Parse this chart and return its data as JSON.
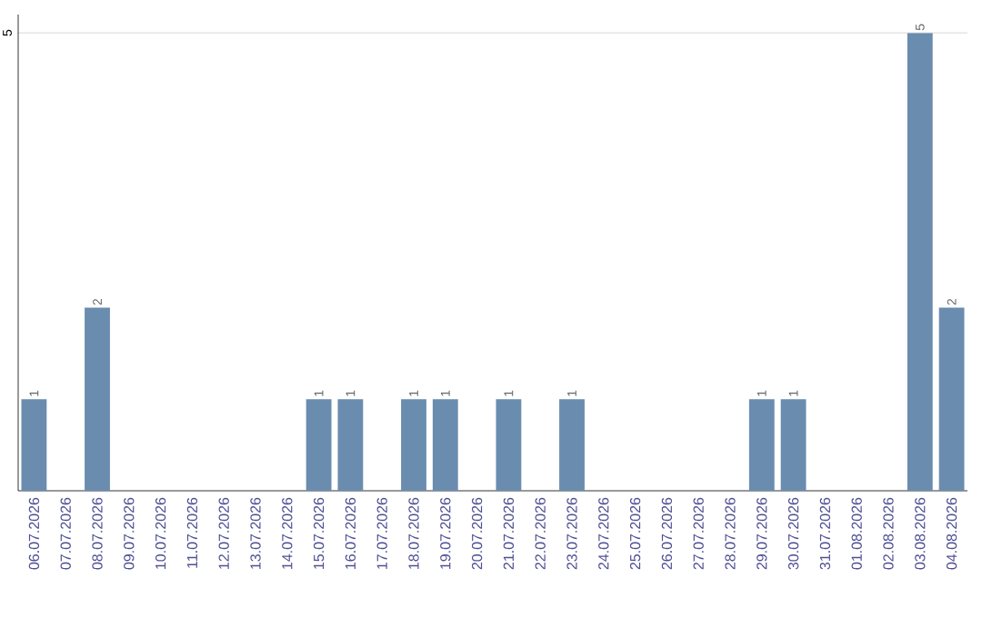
{
  "chart_data": {
    "type": "bar",
    "categories": [
      "06.07.2026",
      "07.07.2026",
      "08.07.2026",
      "09.07.2026",
      "10.07.2026",
      "11.07.2026",
      "12.07.2026",
      "13.07.2026",
      "14.07.2026",
      "15.07.2026",
      "16.07.2026",
      "17.07.2026",
      "18.07.2026",
      "19.07.2026",
      "20.07.2026",
      "21.07.2026",
      "22.07.2026",
      "23.07.2026",
      "24.07.2026",
      "25.07.2026",
      "26.07.2026",
      "27.07.2026",
      "28.07.2026",
      "29.07.2026",
      "30.07.2026",
      "31.07.2026",
      "01.08.2026",
      "02.08.2026",
      "03.08.2026",
      "04.08.2026"
    ],
    "values": [
      1,
      0,
      2,
      0,
      0,
      0,
      0,
      0,
      0,
      1,
      1,
      0,
      1,
      1,
      0,
      1,
      0,
      1,
      0,
      0,
      0,
      0,
      0,
      1,
      1,
      0,
      0,
      0,
      5,
      2
    ],
    "value_labels": [
      "1",
      null,
      "2",
      null,
      null,
      null,
      null,
      null,
      null,
      "1",
      "1",
      null,
      "1",
      "1",
      null,
      "1",
      null,
      "1",
      null,
      null,
      null,
      null,
      null,
      "1",
      "1",
      null,
      null,
      null,
      "5",
      "2"
    ],
    "color": "#6a8caf",
    "ylim": [
      0,
      5.2
    ],
    "yticks": [
      5
    ],
    "grid": "y"
  }
}
